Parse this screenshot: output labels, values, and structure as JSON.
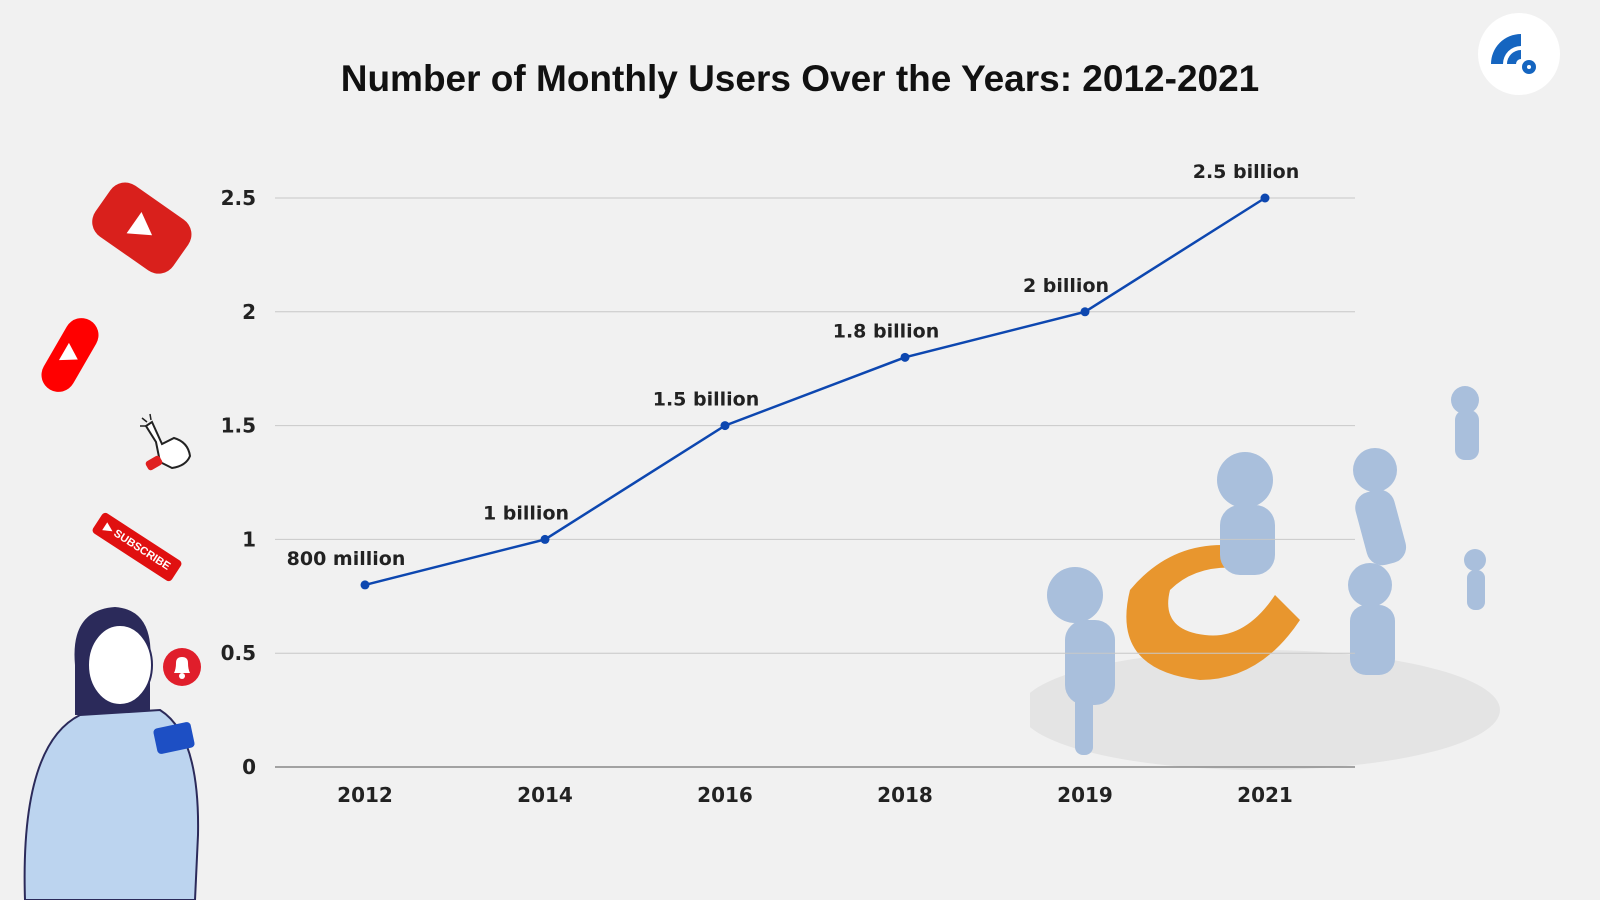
{
  "chart_data": {
    "type": "line",
    "title": "Number of Monthly Users Over the Years: 2012-2021",
    "xlabel": "",
    "ylabel": "",
    "categories": [
      "2012",
      "2014",
      "2016",
      "2018",
      "2019",
      "2021"
    ],
    "values": [
      0.8,
      1,
      1.5,
      1.8,
      2,
      2.5
    ],
    "data_labels": [
      "800 million",
      "1 billion",
      "1.5 billion",
      "1.8 billion",
      "2 billion",
      "2.5 billion"
    ],
    "ylim": [
      0,
      2.5
    ],
    "yticks": [
      "0",
      "0.5",
      "1",
      "1.5",
      "2",
      "2.5"
    ],
    "ytick_values": [
      0,
      0.5,
      1,
      1.5,
      2,
      2.5
    ],
    "grid": true,
    "legend": "none",
    "line_color": "#0d47b0",
    "grid_color": "#c8c8c8"
  },
  "decorations": {
    "logo_icon": "wifi-signal-logo",
    "subscribe_badge": "SUBSCRIBE",
    "icons": [
      "youtube-play-icon",
      "youtube-shorts-icon",
      "pointing-hand-icon",
      "subscribe-badge",
      "bell-notification-icon",
      "woman-with-phone-illustration",
      "magnet-attracting-people-illustration"
    ],
    "brand_red": "#e01010",
    "magnet_orange": "#e8962e",
    "figure_blue": "#a9bfdc"
  }
}
